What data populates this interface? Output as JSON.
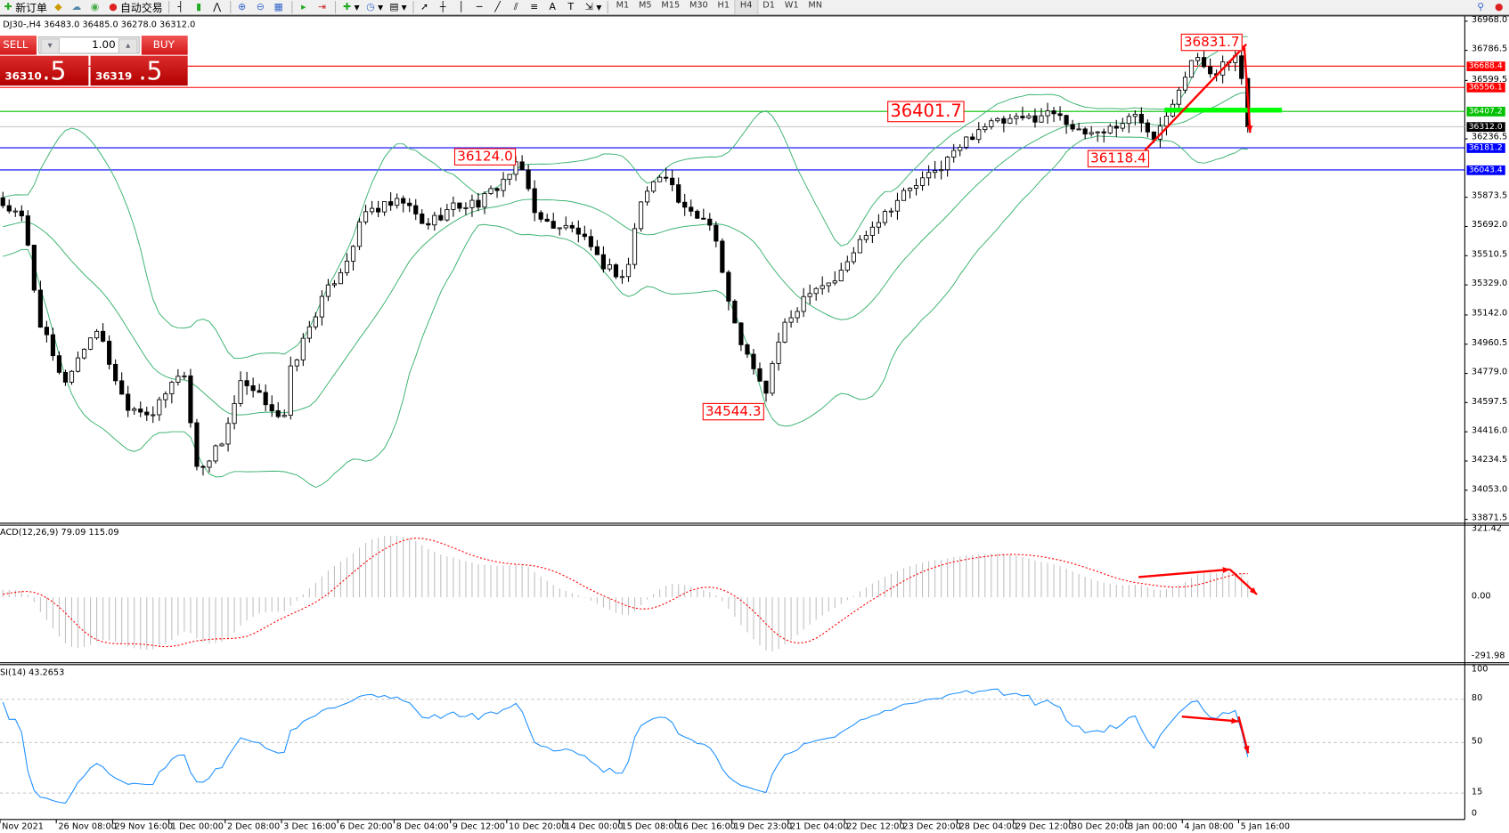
{
  "toolbar": {
    "new_order": "新订单",
    "auto_trading": "自动交易",
    "timeframes": [
      "M1",
      "M5",
      "M15",
      "M30",
      "H1",
      "H4",
      "D1",
      "W1",
      "MN"
    ],
    "active_timeframe": "H4"
  },
  "chart": {
    "title": "DJ30-,H4  36483.0 36485.0 36278.0 36312.0",
    "symbol": "DJ30-",
    "timeframe": "H4",
    "ohlc": {
      "open": 36483.0,
      "high": 36485.0,
      "low": 36278.0,
      "close": 36312.0
    },
    "price_axis": [
      "36968.0",
      "36786.5",
      "36599.5",
      "36236.5",
      "35873.5",
      "35692.0",
      "35510.5",
      "35329.0",
      "35142.0",
      "34960.5",
      "34779.0",
      "34597.5",
      "34416.0",
      "34234.5",
      "34053.0",
      "33871.5"
    ],
    "price_range": [
      33871.5,
      36968.0
    ],
    "levels": [
      {
        "label": "36688.4",
        "value": 36688.4,
        "color": "#ff0000"
      },
      {
        "label": "36556.1",
        "value": 36556.1,
        "color": "#ff0000"
      },
      {
        "label": "36407.2",
        "value": 36407.2,
        "color": "#00c000"
      },
      {
        "label": "36312.0",
        "value": 36312.0,
        "color": "#c0c0c0",
        "bg": "#000000"
      },
      {
        "label": "36181.2",
        "value": 36181.2,
        "color": "#0000ff"
      },
      {
        "label": "36043.4",
        "value": 36043.4,
        "color": "#0000ff"
      }
    ],
    "annotations": [
      "36831.7",
      "36401.7",
      "36124.0",
      "36118.4",
      "34544.3"
    ],
    "colors": {
      "bands": "#3cb371",
      "annotation": "#ff0000",
      "support": "#00ff00",
      "macd_signal": "#ff0000",
      "macd_hist": "#c0c0c0",
      "rsi": "#1e90ff"
    }
  },
  "one_click": {
    "sell_label": "SELL",
    "buy_label": "BUY",
    "lot": "1.00",
    "bid_main": "36310",
    "bid_frac": ".5",
    "ask_main": "36319",
    "ask_frac": ".5"
  },
  "macd": {
    "label": "ACD(12,26,9) 79.09 115.09",
    "axis": [
      "321.42",
      "0.00",
      "-291.98"
    ]
  },
  "rsi": {
    "label": "SI(14) 43.2653",
    "axis": [
      "100",
      "80",
      "50",
      "15",
      "0"
    ]
  },
  "time_axis": [
    "Nov 2021",
    "26 Nov 08:00",
    "29 Nov 16:00",
    "1 Dec 00:00",
    "2 Dec 08:00",
    "3 Dec 16:00",
    "6 Dec 20:00",
    "8 Dec 04:00",
    "9 Dec 12:00",
    "10 Dec 20:00",
    "14 Dec 00:00",
    "15 Dec 08:00",
    "16 Dec 16:00",
    "19 Dec 23:00",
    "21 Dec 04:00",
    "22 Dec 12:00",
    "23 Dec 20:00",
    "28 Dec 04:00",
    "29 Dec 12:00",
    "30 Dec 20:00",
    "3 Jan 00:00",
    "4 Jan 08:00",
    "5 Jan 16:00"
  ]
}
